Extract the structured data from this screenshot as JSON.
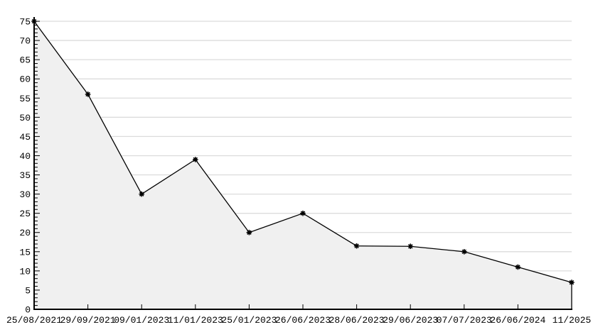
{
  "chart_data": {
    "type": "area",
    "title": "",
    "xlabel": "",
    "ylabel": "",
    "x": [
      "25/08/2021",
      "29/09/2021",
      "09/01/2023",
      "11/01/2023",
      "25/01/2023",
      "26/06/2023",
      "28/06/2023",
      "29/06/2023",
      "07/07/2023",
      "26/06/2024",
      "11/2025"
    ],
    "values": [
      75,
      56,
      30,
      39,
      20,
      25,
      16.5,
      16.4,
      15,
      11,
      7
    ],
    "ylim": [
      0,
      75
    ],
    "ytick_major_step": 5,
    "ytick_minor_step": 1,
    "grid": true,
    "legend_position": "none",
    "marker": "asterisk",
    "colors": {
      "line": "#000000",
      "marker": "#000000",
      "fill": "#f0f0f0",
      "grid": "#dcdcdc",
      "axis": "#000000",
      "label": "#000000",
      "background": "#ffffff"
    }
  }
}
